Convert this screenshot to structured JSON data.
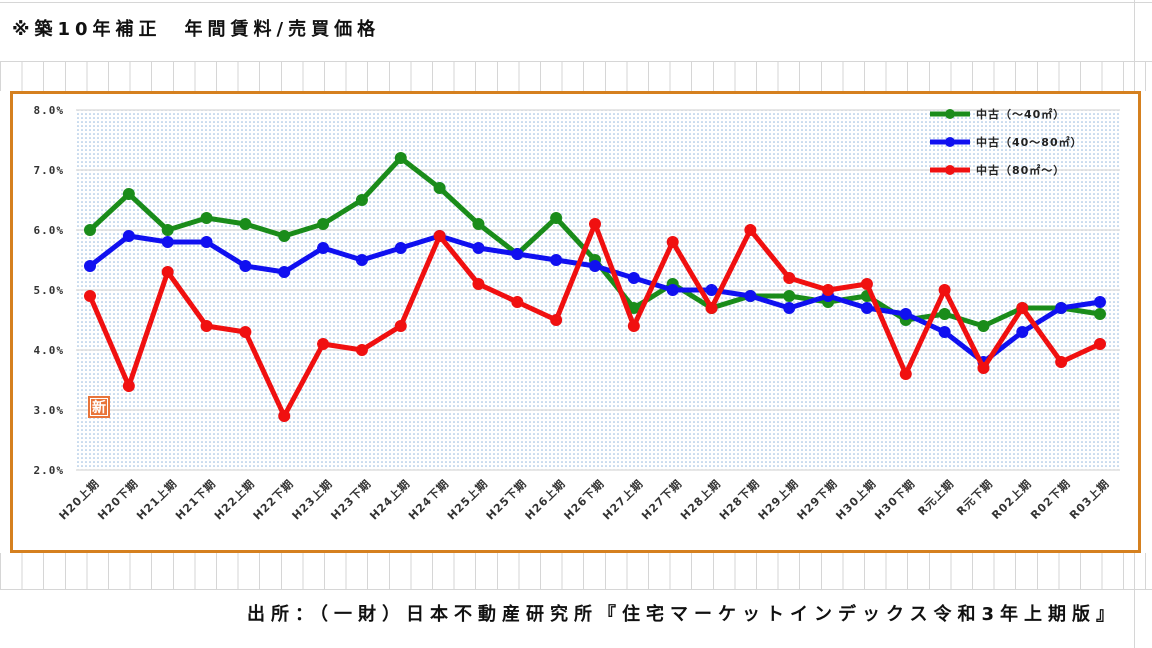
{
  "colors": {
    "frame": "#d5801f",
    "grid": "#cfcfcf",
    "plot_dots": "#8fb5dd",
    "badge": "#e8743a"
  },
  "badge": "新",
  "source": "出所：（一財）日本不動産研究所『住宅マーケットインデックス令和3年上期版』",
  "chart_data": {
    "type": "line",
    "title": "※築10年補正　年間賃料/売買価格",
    "categories": [
      "H20上期",
      "H20下期",
      "H21上期",
      "H21下期",
      "H22上期",
      "H22下期",
      "H23上期",
      "H23下期",
      "H24上期",
      "H24下期",
      "H25上期",
      "H25下期",
      "H26上期",
      "H26下期",
      "H27上期",
      "H27下期",
      "H28上期",
      "H28下期",
      "H29上期",
      "H29下期",
      "H30上期",
      "H30下期",
      "R元上期",
      "R元下期",
      "R02上期",
      "R02下期",
      "R03上期"
    ],
    "ylim": [
      2,
      8
    ],
    "y_ticks": [
      2,
      3,
      4,
      5,
      6,
      7,
      8
    ],
    "y_tick_labels": [
      "2.0%",
      "3.0%",
      "4.0%",
      "5.0%",
      "6.0%",
      "7.0%",
      "8.0%"
    ],
    "grid": true,
    "legend": "top-right",
    "series": [
      {
        "name": "中古（～40㎡）",
        "color": "#1a8c1a",
        "values": [
          6.0,
          6.6,
          6.0,
          6.2,
          6.1,
          5.9,
          6.1,
          6.5,
          7.2,
          6.7,
          6.1,
          5.6,
          6.2,
          5.5,
          4.7,
          5.1,
          4.7,
          4.9,
          4.9,
          4.8,
          4.9,
          4.5,
          4.6,
          4.4,
          4.7,
          4.7,
          4.6
        ]
      },
      {
        "name": "中古（40～80㎡）",
        "color": "#1010f0",
        "values": [
          5.4,
          5.9,
          5.8,
          5.8,
          5.4,
          5.3,
          5.7,
          5.5,
          5.7,
          5.9,
          5.7,
          5.6,
          5.5,
          5.4,
          5.2,
          5.0,
          5.0,
          4.9,
          4.7,
          4.9,
          4.7,
          4.6,
          4.3,
          3.8,
          4.3,
          4.7,
          4.8
        ]
      },
      {
        "name": "中古（80㎡～）",
        "color": "#f01010",
        "values": [
          4.9,
          3.4,
          5.3,
          4.4,
          4.3,
          2.9,
          4.1,
          4.0,
          4.4,
          5.9,
          5.1,
          4.8,
          4.5,
          6.1,
          4.4,
          5.8,
          4.7,
          6.0,
          5.2,
          5.0,
          5.1,
          3.6,
          5.0,
          3.7,
          4.7,
          3.8,
          4.1
        ]
      }
    ]
  }
}
